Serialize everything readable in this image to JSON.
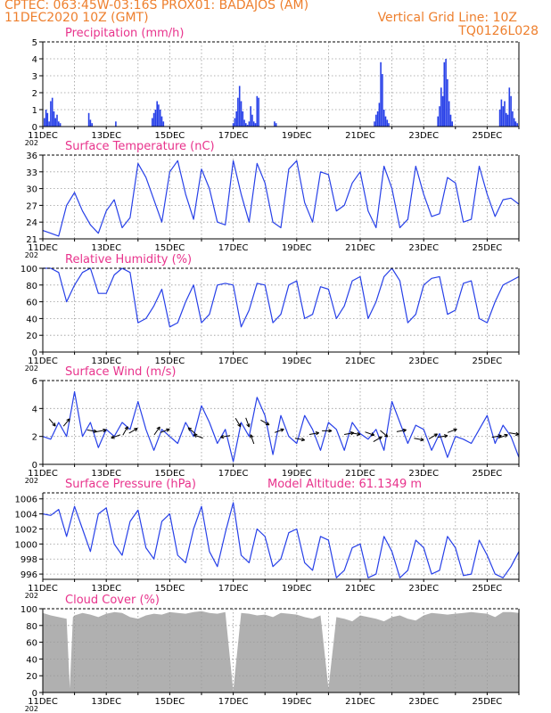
{
  "header": {
    "line1_left": "CPTEC:   063:45W-03:16S   PROX01: BADAJOS (AM)",
    "line2_left": "11DEC2020 10Z (GMT)",
    "line2_right": "Vertical Grid Line: 10Z",
    "line3_right": "TQ0126L028"
  },
  "colors": {
    "header": "#ee7f2d",
    "title": "#e8338c",
    "series": "#2740e8",
    "cloud": "#b0b0b0",
    "grid": "#9a9a9a"
  },
  "x_axis": {
    "tick_labels": [
      "11DEC",
      "13DEC",
      "15DEC",
      "17DEC",
      "19DEC",
      "21DEC",
      "23DEC",
      "25DEC"
    ],
    "year_fragment": "202",
    "days": 15
  },
  "chart_data": [
    {
      "id": "precip",
      "type": "bar",
      "title": "Precipitation (mm/h)",
      "ylim": [
        0,
        5
      ],
      "yticks": [
        0,
        1,
        2,
        3,
        4,
        5
      ],
      "grid": true,
      "x_unit": "days since 11DEC 00Z",
      "x": [
        0.05,
        0.1,
        0.15,
        0.2,
        0.25,
        0.3,
        0.35,
        0.4,
        0.45,
        0.5,
        0.55,
        1.45,
        1.5,
        1.55,
        2.3,
        3.45,
        3.5,
        3.55,
        3.6,
        3.65,
        3.7,
        3.75,
        3.8,
        6.0,
        6.05,
        6.1,
        6.15,
        6.2,
        6.25,
        6.3,
        6.35,
        6.4,
        6.45,
        6.5,
        6.55,
        6.6,
        6.65,
        6.7,
        6.75,
        6.8,
        7.3,
        7.35,
        10.45,
        10.5,
        10.55,
        10.6,
        10.65,
        10.7,
        10.75,
        10.8,
        10.85,
        10.9,
        12.45,
        12.5,
        12.55,
        12.6,
        12.65,
        12.7,
        12.75,
        12.8,
        12.85,
        12.9,
        14.4,
        14.45,
        14.5,
        14.55,
        14.6,
        14.65,
        14.7,
        14.75,
        14.8,
        14.85,
        14.9,
        14.95
      ],
      "values": [
        0.5,
        1.0,
        0.8,
        0.3,
        1.5,
        1.7,
        0.9,
        0.5,
        0.7,
        0.3,
        0.2,
        0.8,
        0.4,
        0.2,
        0.3,
        0.5,
        0.8,
        1.0,
        1.5,
        1.3,
        1.0,
        0.6,
        0.3,
        0.2,
        0.5,
        0.9,
        1.7,
        2.4,
        1.5,
        0.9,
        0.4,
        0.2,
        0.1,
        0.3,
        1.2,
        0.7,
        0.3,
        0.2,
        1.8,
        1.7,
        0.3,
        0.2,
        0.3,
        0.7,
        0.9,
        1.4,
        3.8,
        3.1,
        1.0,
        0.6,
        0.4,
        0.2,
        0.6,
        1.2,
        2.3,
        1.8,
        3.8,
        4.0,
        2.8,
        1.5,
        0.7,
        0.3,
        1.0,
        1.6,
        1.2,
        1.5,
        0.8,
        0.7,
        2.3,
        1.8,
        0.9,
        0.5,
        0.3,
        0.2
      ]
    },
    {
      "id": "temperature",
      "type": "line",
      "title": "Surface Temperature (nC)",
      "ylim": [
        21,
        36
      ],
      "yticks": [
        21,
        24,
        27,
        30,
        33,
        36
      ],
      "grid": true,
      "x_unit": "days since 11DEC 00Z",
      "x": [
        0.0,
        0.25,
        0.5,
        0.75,
        1.0,
        1.25,
        1.5,
        1.75,
        2.0,
        2.25,
        2.5,
        2.75,
        3.0,
        3.25,
        3.5,
        3.75,
        4.0,
        4.25,
        4.5,
        4.75,
        5.0,
        5.25,
        5.5,
        5.75,
        6.0,
        6.25,
        6.5,
        6.75,
        7.0,
        7.25,
        7.5,
        7.75,
        8.0,
        8.25,
        8.5,
        8.75,
        9.0,
        9.25,
        9.5,
        9.75,
        10.0,
        10.25,
        10.5,
        10.75,
        11.0,
        11.25,
        11.5,
        11.75,
        12.0,
        12.25,
        12.5,
        12.75,
        13.0,
        13.25,
        13.5,
        13.75,
        14.0,
        14.25,
        14.5,
        14.75,
        15.0
      ],
      "values": [
        22.5,
        22.0,
        21.5,
        27.0,
        29.3,
        26.0,
        23.5,
        22.0,
        26.0,
        28.0,
        23.0,
        24.8,
        34.5,
        32.0,
        28.0,
        24.0,
        33.0,
        35.0,
        29.0,
        24.5,
        33.5,
        30.0,
        24.0,
        23.5,
        35.0,
        29.0,
        24.0,
        34.5,
        31.0,
        24.0,
        23.0,
        33.5,
        35.0,
        27.5,
        24.0,
        33.0,
        32.5,
        26.0,
        27.0,
        31.0,
        33.0,
        26.0,
        23.0,
        34.0,
        30.0,
        23.0,
        24.5,
        34.0,
        29.0,
        25.0,
        25.5,
        32.0,
        31.0,
        24.0,
        24.5,
        34.0,
        29.0,
        25.0,
        28.0,
        28.3,
        27.2
      ]
    },
    {
      "id": "humidity",
      "type": "line",
      "title": "Relative Humidity (%)",
      "ylim": [
        0,
        100
      ],
      "yticks": [
        0,
        20,
        40,
        60,
        80,
        100
      ],
      "grid": true,
      "x_unit": "days since 11DEC 00Z",
      "x": [
        0.0,
        0.25,
        0.5,
        0.75,
        1.0,
        1.25,
        1.5,
        1.75,
        2.0,
        2.25,
        2.5,
        2.75,
        3.0,
        3.25,
        3.5,
        3.75,
        4.0,
        4.25,
        4.5,
        4.75,
        5.0,
        5.25,
        5.5,
        5.75,
        6.0,
        6.25,
        6.5,
        6.75,
        7.0,
        7.25,
        7.5,
        7.75,
        8.0,
        8.25,
        8.5,
        8.75,
        9.0,
        9.25,
        9.5,
        9.75,
        10.0,
        10.25,
        10.5,
        10.75,
        11.0,
        11.25,
        11.5,
        11.75,
        12.0,
        12.25,
        12.5,
        12.75,
        13.0,
        13.25,
        13.5,
        13.75,
        14.0,
        14.25,
        14.5,
        14.75,
        15.0
      ],
      "values": [
        100,
        100,
        95,
        60,
        80,
        95,
        100,
        70,
        70,
        92,
        100,
        95,
        35,
        40,
        55,
        75,
        30,
        35,
        60,
        80,
        35,
        45,
        80,
        82,
        80,
        30,
        50,
        82,
        80,
        35,
        45,
        80,
        85,
        40,
        45,
        78,
        75,
        40,
        55,
        85,
        90,
        40,
        60,
        90,
        100,
        85,
        35,
        45,
        80,
        88,
        90,
        45,
        50,
        82,
        85,
        40,
        35,
        60,
        80,
        85,
        90
      ]
    },
    {
      "id": "wind",
      "type": "line",
      "title": "Surface Wind (m/s)",
      "ylim": [
        0,
        6
      ],
      "yticks": [
        0,
        2,
        4,
        6
      ],
      "grid": true,
      "x_unit": "days since 11DEC 00Z",
      "x": [
        0.0,
        0.25,
        0.5,
        0.75,
        1.0,
        1.25,
        1.5,
        1.75,
        2.0,
        2.25,
        2.5,
        2.75,
        3.0,
        3.25,
        3.5,
        3.75,
        4.0,
        4.25,
        4.5,
        4.75,
        5.0,
        5.25,
        5.5,
        5.75,
        6.0,
        6.25,
        6.5,
        6.75,
        7.0,
        7.25,
        7.5,
        7.75,
        8.0,
        8.25,
        8.5,
        8.75,
        9.0,
        9.25,
        9.5,
        9.75,
        10.0,
        10.25,
        10.5,
        10.75,
        11.0,
        11.25,
        11.5,
        11.75,
        12.0,
        12.25,
        12.5,
        12.75,
        13.0,
        13.25,
        13.5,
        13.75,
        14.0,
        14.25,
        14.5,
        14.75,
        15.0
      ],
      "values": [
        2.0,
        1.8,
        3.0,
        2.0,
        5.2,
        2.0,
        3.0,
        1.2,
        2.5,
        2.0,
        3.0,
        2.5,
        4.5,
        2.5,
        1.0,
        2.5,
        2.0,
        1.5,
        3.0,
        2.0,
        4.2,
        3.0,
        1.5,
        2.5,
        0.2,
        3.0,
        2.0,
        4.8,
        3.5,
        0.7,
        3.5,
        2.0,
        1.5,
        3.5,
        2.5,
        1.0,
        3.0,
        2.5,
        1.0,
        3.0,
        2.2,
        1.8,
        2.5,
        1.0,
        4.5,
        3.0,
        1.5,
        2.8,
        2.5,
        1.0,
        2.2,
        0.5,
        2.0,
        1.8,
        1.5,
        2.5,
        3.5,
        1.5,
        2.8,
        2.0,
        0.5
      ],
      "arrows": {
        "x": [
          0.3,
          0.75,
          1.55,
          1.85,
          2.3,
          2.6,
          2.85,
          3.6,
          3.85,
          4.7,
          4.9,
          5.75,
          6.15,
          6.45,
          6.6,
          7.0,
          7.45,
          8.1,
          8.55,
          8.95,
          9.65,
          9.85,
          10.3,
          10.55,
          10.75,
          11.3,
          11.85,
          12.3,
          12.6,
          12.9,
          14.3,
          14.5,
          14.85
        ],
        "speed": [
          3.0,
          3.0,
          2.4,
          2.4,
          2.0,
          2.4,
          2.4,
          2.4,
          2.4,
          2.4,
          2.0,
          2.0,
          3.0,
          3.0,
          1.8,
          3.0,
          2.4,
          1.8,
          2.2,
          2.4,
          2.2,
          2.2,
          2.2,
          1.8,
          2.2,
          2.4,
          1.8,
          2.0,
          2.0,
          2.4,
          2.0,
          2.0,
          2.2
        ],
        "dir": [
          140,
          40,
          100,
          80,
          250,
          30,
          60,
          35,
          70,
          310,
          290,
          260,
          150,
          160,
          340,
          120,
          70,
          100,
          80,
          90,
          80,
          100,
          110,
          60,
          130,
          80,
          100,
          60,
          80,
          70,
          80,
          70,
          100
        ]
      }
    },
    {
      "id": "pressure",
      "type": "line",
      "title": "Surface Pressure (hPa)",
      "subtitle": "Model Altitude: 61.1349 m",
      "ylim": [
        995.3,
        1006.8
      ],
      "yticks": [
        996,
        998,
        1000,
        1002,
        1004,
        1006
      ],
      "grid": true,
      "x_unit": "days since 11DEC 00Z",
      "x": [
        0.0,
        0.25,
        0.5,
        0.75,
        1.0,
        1.25,
        1.5,
        1.75,
        2.0,
        2.25,
        2.5,
        2.75,
        3.0,
        3.25,
        3.5,
        3.75,
        4.0,
        4.25,
        4.5,
        4.75,
        5.0,
        5.25,
        5.5,
        5.75,
        6.0,
        6.25,
        6.5,
        6.75,
        7.0,
        7.25,
        7.5,
        7.75,
        8.0,
        8.25,
        8.5,
        8.75,
        9.0,
        9.25,
        9.5,
        9.75,
        10.0,
        10.25,
        10.5,
        10.75,
        11.0,
        11.25,
        11.5,
        11.75,
        12.0,
        12.25,
        12.5,
        12.75,
        13.0,
        13.25,
        13.5,
        13.75,
        14.0,
        14.25,
        14.5,
        14.75,
        15.0
      ],
      "values": [
        1004.0,
        1003.8,
        1004.6,
        1001.0,
        1005.0,
        1002.0,
        999.0,
        1004.0,
        1004.8,
        1000.0,
        998.5,
        1003.0,
        1004.5,
        999.5,
        998.0,
        1003.0,
        1004.0,
        998.5,
        997.5,
        1002.0,
        1005.0,
        999.0,
        997.0,
        1001.5,
        1005.5,
        998.5,
        997.5,
        1002.0,
        1001.0,
        997.0,
        998.0,
        1001.5,
        1002.0,
        997.5,
        996.5,
        1001.0,
        1000.5,
        995.5,
        996.5,
        999.5,
        1000.0,
        995.5,
        996.0,
        1001.0,
        999.0,
        995.5,
        996.5,
        1000.5,
        999.5,
        996.0,
        996.5,
        1001.0,
        999.5,
        995.8,
        996.0,
        1000.5,
        998.5,
        996.0,
        995.5,
        997.0,
        999.0
      ]
    },
    {
      "id": "cloud",
      "type": "area",
      "title": "Cloud Cover (%)",
      "ylim": [
        0,
        100
      ],
      "yticks": [
        0,
        20,
        40,
        60,
        80,
        100
      ],
      "grid": true,
      "x_unit": "days since 11DEC 00Z",
      "x": [
        0.0,
        0.25,
        0.5,
        0.75,
        0.85,
        0.95,
        1.0,
        1.25,
        1.5,
        1.75,
        2.0,
        2.25,
        2.5,
        2.75,
        3.0,
        3.25,
        3.5,
        3.75,
        4.0,
        4.25,
        4.5,
        4.75,
        5.0,
        5.25,
        5.5,
        5.75,
        6.0,
        6.25,
        6.5,
        6.75,
        7.0,
        7.25,
        7.5,
        7.75,
        8.0,
        8.25,
        8.5,
        8.75,
        9.0,
        9.25,
        9.5,
        9.75,
        10.0,
        10.25,
        10.5,
        10.75,
        11.0,
        11.25,
        11.5,
        11.75,
        12.0,
        12.25,
        12.5,
        12.75,
        13.0,
        13.25,
        13.5,
        13.75,
        14.0,
        14.25,
        14.5,
        14.75,
        15.0
      ],
      "values": [
        95,
        92,
        90,
        88,
        5,
        90,
        92,
        95,
        93,
        90,
        94,
        96,
        95,
        90,
        88,
        92,
        94,
        93,
        96,
        95,
        94,
        96,
        97,
        95,
        94,
        96,
        2,
        95,
        94,
        92,
        93,
        90,
        95,
        94,
        93,
        90,
        88,
        92,
        5,
        90,
        88,
        85,
        92,
        90,
        88,
        85,
        90,
        92,
        88,
        86,
        92,
        95,
        94,
        93,
        94,
        95,
        96,
        95,
        94,
        90,
        96,
        96,
        95
      ]
    }
  ]
}
